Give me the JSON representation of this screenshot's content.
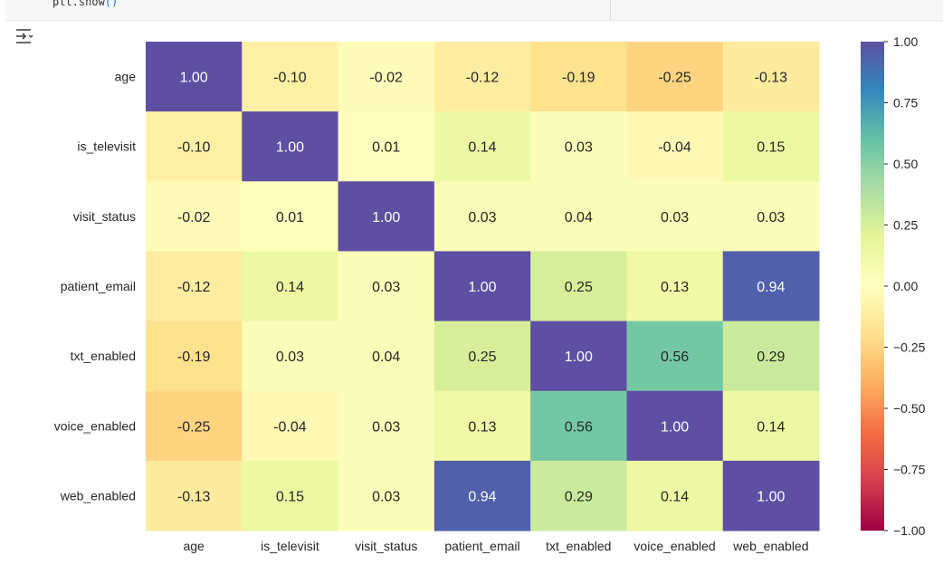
{
  "code": {
    "text": "plt.show",
    "parens": "()"
  },
  "chart_data": {
    "type": "heatmap",
    "colormap": "Spectral",
    "x_labels": [
      "age",
      "is_televisit",
      "visit_status",
      "patient_email",
      "txt_enabled",
      "voice_enabled",
      "web_enabled"
    ],
    "y_labels": [
      "age",
      "is_televisit",
      "visit_status",
      "patient_email",
      "txt_enabled",
      "voice_enabled",
      "web_enabled"
    ],
    "values": [
      [
        1.0,
        -0.1,
        -0.02,
        -0.12,
        -0.19,
        -0.25,
        -0.13
      ],
      [
        -0.1,
        1.0,
        0.01,
        0.14,
        0.03,
        -0.04,
        0.15
      ],
      [
        -0.02,
        0.01,
        1.0,
        0.03,
        0.04,
        0.03,
        0.03
      ],
      [
        -0.12,
        0.14,
        0.03,
        1.0,
        0.25,
        0.13,
        0.94
      ],
      [
        -0.19,
        0.03,
        0.04,
        0.25,
        1.0,
        0.56,
        0.29
      ],
      [
        -0.25,
        -0.04,
        0.03,
        0.13,
        0.56,
        1.0,
        0.14
      ],
      [
        -0.13,
        0.15,
        0.03,
        0.94,
        0.29,
        0.14,
        1.0
      ]
    ],
    "cell_labels": [
      [
        "1.00",
        "-0.10",
        "-0.02",
        "-0.12",
        "-0.19",
        "-0.25",
        "-0.13"
      ],
      [
        "-0.10",
        "1.00",
        "0.01",
        "0.14",
        "0.03",
        "-0.04",
        "0.15"
      ],
      [
        "-0.02",
        "0.01",
        "1.00",
        "0.03",
        "0.04",
        "0.03",
        "0.03"
      ],
      [
        "-0.12",
        "0.14",
        "0.03",
        "1.00",
        "0.25",
        "0.13",
        "0.94"
      ],
      [
        "-0.19",
        "0.03",
        "0.04",
        "0.25",
        "1.00",
        "0.56",
        "0.29"
      ],
      [
        "-0.25",
        "-0.04",
        "0.03",
        "0.13",
        "0.56",
        "1.00",
        "0.14"
      ],
      [
        "-0.13",
        "0.15",
        "0.03",
        "0.94",
        "0.29",
        "0.14",
        "1.00"
      ]
    ],
    "vmin": -1.0,
    "vmax": 1.0,
    "colorbar_ticks": [
      1.0,
      0.75,
      0.5,
      0.25,
      0.0,
      -0.25,
      -0.5,
      -0.75,
      -1.0
    ],
    "colorbar_tick_labels": [
      "1.00",
      "0.75",
      "0.50",
      "0.25",
      "0.00",
      "−0.25",
      "−0.50",
      "−0.75",
      "−1.00"
    ]
  }
}
